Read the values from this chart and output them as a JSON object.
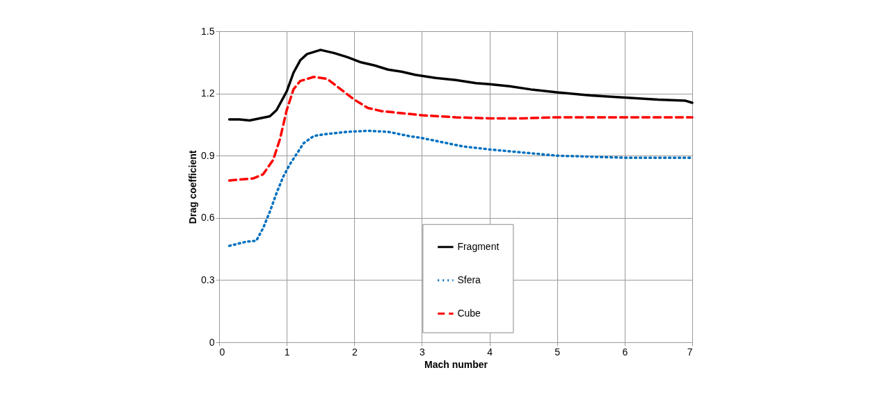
{
  "chart_data": {
    "type": "line",
    "xlabel": "Mach number",
    "ylabel": "Drag coefficient",
    "xlim": [
      0,
      7
    ],
    "xticks": [
      0,
      1,
      2,
      3,
      4,
      5,
      6,
      7
    ],
    "ylim": [
      0,
      1.5
    ],
    "yticks": [
      0,
      0.3,
      0.6,
      0.9,
      1.2,
      1.5
    ],
    "grid": true,
    "legend": "bottom",
    "series": [
      {
        "name": "Fragment",
        "color": "#000000",
        "line_style": "solid",
        "x": [
          0.15,
          0.3,
          0.45,
          0.6,
          0.75,
          0.85,
          1.0,
          1.1,
          1.2,
          1.3,
          1.5,
          1.7,
          1.9,
          2.1,
          2.3,
          2.5,
          2.7,
          2.9,
          3.2,
          3.5,
          3.8,
          4.0,
          4.3,
          4.6,
          5.0,
          5.5,
          6.0,
          6.5,
          6.9,
          7.0
        ],
        "values": [
          1.075,
          1.075,
          1.07,
          1.08,
          1.09,
          1.12,
          1.21,
          1.3,
          1.36,
          1.39,
          1.41,
          1.395,
          1.375,
          1.35,
          1.335,
          1.315,
          1.305,
          1.29,
          1.275,
          1.265,
          1.25,
          1.245,
          1.235,
          1.22,
          1.205,
          1.19,
          1.18,
          1.17,
          1.165,
          1.155
        ]
      },
      {
        "name": "Sfera",
        "color": "#0070c0",
        "line_style": "dotted",
        "x": [
          0.15,
          0.4,
          0.55,
          0.65,
          0.75,
          0.85,
          0.95,
          1.05,
          1.15,
          1.25,
          1.4,
          1.6,
          1.9,
          2.2,
          2.5,
          2.8,
          3.0,
          3.3,
          3.6,
          4.0,
          4.5,
          5.0,
          5.5,
          6.0,
          7.0
        ],
        "values": [
          0.465,
          0.485,
          0.49,
          0.55,
          0.63,
          0.72,
          0.8,
          0.86,
          0.91,
          0.96,
          0.995,
          1.005,
          1.015,
          1.02,
          1.015,
          0.995,
          0.985,
          0.965,
          0.945,
          0.93,
          0.915,
          0.9,
          0.895,
          0.89,
          0.89
        ]
      },
      {
        "name": "Cube",
        "color": "#ff0000",
        "line_style": "dashed",
        "x": [
          0.15,
          0.3,
          0.5,
          0.65,
          0.8,
          0.9,
          1.0,
          1.1,
          1.2,
          1.4,
          1.6,
          1.8,
          2.0,
          2.2,
          2.4,
          2.7,
          3.0,
          3.5,
          4.0,
          4.5,
          5.0,
          6.0,
          7.0
        ],
        "values": [
          0.78,
          0.785,
          0.79,
          0.81,
          0.88,
          0.98,
          1.12,
          1.22,
          1.26,
          1.28,
          1.27,
          1.22,
          1.17,
          1.13,
          1.115,
          1.105,
          1.095,
          1.085,
          1.08,
          1.08,
          1.085,
          1.085,
          1.085
        ]
      }
    ]
  }
}
